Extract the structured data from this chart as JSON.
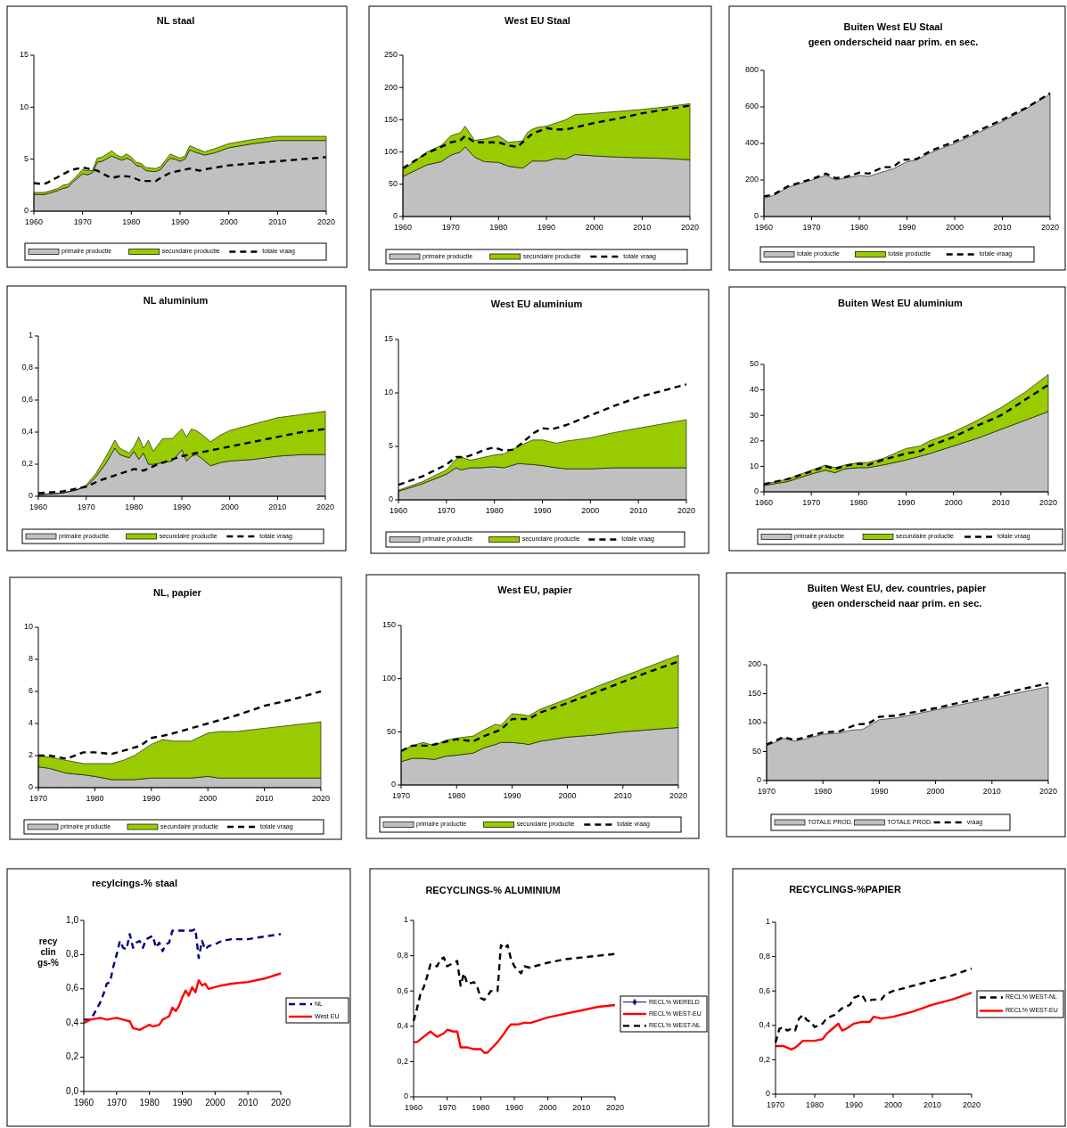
{
  "chart_data": [
    {
      "type": "area",
      "stacked": true,
      "title": "NL staal",
      "x": [
        1960,
        1962,
        1963,
        1965,
        1966,
        1967,
        1968,
        1970,
        1971,
        1972,
        1973,
        1974,
        1976,
        1977,
        1978,
        1979,
        1980,
        1981,
        1982,
        1983,
        1985,
        1986,
        1987,
        1988,
        1989,
        1990,
        1991,
        1992,
        1993,
        1995,
        1997,
        2000,
        2005,
        2010,
        2020
      ],
      "xlim": [
        1960,
        2020
      ],
      "xticks": [
        1960,
        1970,
        1980,
        1990,
        2000,
        2010,
        2020
      ],
      "ylim": [
        0,
        15
      ],
      "yticks": [
        0,
        5,
        10,
        15
      ],
      "legend": "bottom",
      "series": [
        {
          "name": "primaire productie",
          "color": "#c0c0c0",
          "values": [
            1.6,
            1.6,
            1.7,
            2.0,
            2.2,
            2.3,
            2.8,
            3.6,
            3.5,
            3.7,
            4.7,
            4.8,
            5.3,
            5.1,
            4.9,
            5.1,
            4.9,
            4.4,
            4.3,
            3.9,
            3.8,
            4.0,
            4.6,
            5.1,
            5.0,
            4.8,
            5.0,
            5.9,
            5.7,
            5.4,
            5.6,
            6.1,
            6.5,
            6.8,
            6.8
          ]
        },
        {
          "name": "secundaire productie",
          "color": "#99cc00",
          "values": [
            0.2,
            0.2,
            0.2,
            0.2,
            0.3,
            0.3,
            0.2,
            0.4,
            0.4,
            0.2,
            0.4,
            0.4,
            0.5,
            0.3,
            0.3,
            0.4,
            0.3,
            0.3,
            0.3,
            0.3,
            0.3,
            0.3,
            0.3,
            0.4,
            0.3,
            0.3,
            0.3,
            0.4,
            0.4,
            0.3,
            0.4,
            0.4,
            0.4,
            0.4,
            0.4
          ]
        },
        {
          "name": "totale vraag",
          "type": "line",
          "color": "#000000",
          "line_style": "dashed",
          "x": [
            1960,
            1962,
            1963,
            1965,
            1967,
            1968,
            1970,
            1972,
            1973,
            1975,
            1976,
            1978,
            1980,
            1982,
            1985,
            1986,
            1988,
            1990,
            1992,
            1994,
            1996,
            2000,
            2005,
            2010,
            2015,
            2020
          ],
          "values": [
            2.7,
            2.6,
            2.8,
            3.3,
            3.8,
            4.0,
            4.2,
            4.0,
            3.9,
            3.4,
            3.2,
            3.4,
            3.3,
            2.9,
            2.9,
            3.2,
            3.7,
            3.9,
            4.1,
            3.9,
            4.1,
            4.4,
            4.6,
            4.8,
            5.0,
            5.2
          ]
        }
      ]
    },
    {
      "type": "area",
      "stacked": true,
      "title": "West EU Staal",
      "x": [
        1960,
        1965,
        1968,
        1970,
        1972,
        1973,
        1975,
        1977,
        1980,
        1982,
        1985,
        1986,
        1987,
        1988,
        1990,
        1992,
        1994,
        1996,
        2000,
        2005,
        2010,
        2015,
        2020
      ],
      "xlim": [
        1960,
        2020
      ],
      "xticks": [
        1960,
        1970,
        1980,
        1990,
        2000,
        2010,
        2020
      ],
      "ylim": [
        0,
        250
      ],
      "yticks": [
        0,
        50,
        100,
        150,
        200,
        250
      ],
      "legend": "bottom",
      "series": [
        {
          "name": "primaire productie",
          "color": "#c0c0c0",
          "values": [
            62,
            80,
            85,
            95,
            100,
            108,
            92,
            85,
            84,
            78,
            75,
            80,
            86,
            86,
            86,
            90,
            89,
            96,
            94,
            92,
            91,
            90,
            88
          ]
        },
        {
          "name": "secundaire productie",
          "color": "#99cc00",
          "values": [
            10,
            20,
            25,
            30,
            30,
            32,
            26,
            35,
            41,
            37,
            42,
            50,
            49,
            52,
            54,
            55,
            61,
            62,
            66,
            71,
            75,
            80,
            87
          ]
        },
        {
          "name": "totale vraag",
          "type": "line",
          "color": "#000000",
          "line_style": "dashed",
          "x": [
            1960,
            1965,
            1968,
            1970,
            1972,
            1973,
            1975,
            1980,
            1982,
            1984,
            1985,
            1987,
            1990,
            1992,
            1994,
            1996,
            2000,
            2005,
            2010,
            2015,
            2020
          ],
          "values": [
            75,
            98,
            108,
            115,
            118,
            125,
            115,
            115,
            110,
            108,
            115,
            128,
            137,
            135,
            135,
            138,
            145,
            152,
            160,
            166,
            172
          ]
        }
      ]
    },
    {
      "type": "area",
      "stacked": true,
      "title": "Buiten West EU Staal",
      "subtitle": "geen onderscheid naar prim. en sec.",
      "x": [
        1960,
        1962,
        1965,
        1970,
        1973,
        1975,
        1977,
        1980,
        1982,
        1985,
        1987,
        1990,
        1992,
        1995,
        2000,
        2005,
        2010,
        2015,
        2020
      ],
      "xlim": [
        1960,
        2020
      ],
      "xticks": [
        1960,
        1970,
        1980,
        1990,
        2000,
        2010,
        2020
      ],
      "ylim": [
        0,
        800
      ],
      "yticks": [
        0,
        200,
        400,
        600,
        800
      ],
      "legend": "bottom",
      "series": [
        {
          "name": "totale productie",
          "color": "#c0c0c0",
          "values": [
            100,
            115,
            160,
            200,
            225,
            200,
            210,
            225,
            220,
            245,
            260,
            300,
            310,
            350,
            400,
            460,
            520,
            590,
            670
          ]
        },
        {
          "name": "totale productie",
          "color": "#99cc00",
          "values": [
            null,
            null,
            null,
            null,
            null,
            null,
            null,
            null,
            null,
            null,
            null,
            null,
            null,
            null,
            null,
            null,
            null,
            null,
            null
          ]
        },
        {
          "name": "totale vraag",
          "type": "line",
          "color": "#000000",
          "line_style": "dashed",
          "x": [
            1960,
            1962,
            1965,
            1970,
            1973,
            1975,
            1977,
            1980,
            1982,
            1985,
            1987,
            1989,
            1992,
            1995,
            2000,
            2005,
            2010,
            2015,
            2020
          ],
          "values": [
            110,
            120,
            165,
            205,
            235,
            210,
            215,
            240,
            235,
            270,
            270,
            310,
            315,
            360,
            410,
            470,
            530,
            595,
            675
          ]
        }
      ]
    },
    {
      "type": "area",
      "stacked": true,
      "title": "NL aluminium",
      "x": [
        1960,
        1965,
        1968,
        1970,
        1972,
        1974,
        1976,
        1977,
        1979,
        1980,
        1981,
        1982,
        1983,
        1984,
        1986,
        1988,
        1990,
        1991,
        1992,
        1993,
        1994,
        1996,
        1998,
        2000,
        2005,
        2010,
        2015,
        2020
      ],
      "xlim": [
        1960,
        2020
      ],
      "xticks": [
        1960,
        1970,
        1980,
        1990,
        2000,
        2010,
        2020
      ],
      "ylim": [
        0,
        1
      ],
      "yticks": [
        0,
        {
          "value": 0.2,
          "label": "0,2"
        },
        {
          "value": 0.4,
          "label": "0,4"
        },
        {
          "value": 0.6,
          "label": "0,6"
        },
        {
          "value": 0.8,
          "label": "0,8"
        },
        1
      ],
      "legend": "bottom",
      "series": [
        {
          "name": "primaire productie",
          "color": "#c0c0c0",
          "values": [
            0.01,
            0.02,
            0.04,
            0.06,
            0.12,
            0.2,
            0.3,
            0.26,
            0.24,
            0.28,
            0.23,
            0.27,
            0.2,
            0.2,
            0.21,
            0.22,
            0.29,
            0.22,
            0.25,
            0.26,
            0.24,
            0.19,
            0.21,
            0.22,
            0.23,
            0.25,
            0.26,
            0.26
          ]
        },
        {
          "name": "secundaire productie",
          "color": "#99cc00",
          "values": [
            0,
            0,
            0,
            0.01,
            0.02,
            0.04,
            0.05,
            0.04,
            0.03,
            0.03,
            0.14,
            0.03,
            0.15,
            0.08,
            0.15,
            0.14,
            0.13,
            0.15,
            0.17,
            0.15,
            0.15,
            0.15,
            0.17,
            0.19,
            0.22,
            0.24,
            0.25,
            0.27
          ]
        },
        {
          "name": "totale vraag",
          "type": "line",
          "color": "#000000",
          "line_style": "dashed",
          "x": [
            1960,
            1965,
            1970,
            1973,
            1976,
            1980,
            1982,
            1985,
            1987,
            1990,
            1993,
            1995,
            2000,
            2005,
            2010,
            2015,
            2020
          ],
          "values": [
            0.02,
            0.03,
            0.06,
            0.1,
            0.13,
            0.17,
            0.16,
            0.2,
            0.22,
            0.25,
            0.27,
            0.28,
            0.31,
            0.34,
            0.37,
            0.4,
            0.42
          ]
        }
      ]
    },
    {
      "type": "area",
      "stacked": true,
      "title": "West EU aluminium",
      "x": [
        1960,
        1965,
        1970,
        1972,
        1973,
        1975,
        1977,
        1980,
        1982,
        1985,
        1988,
        1990,
        1993,
        1995,
        2000,
        2005,
        2010,
        2015,
        2020
      ],
      "xlim": [
        1960,
        2020
      ],
      "xticks": [
        1960,
        1970,
        1980,
        1990,
        2000,
        2010,
        2020
      ],
      "ylim": [
        0,
        15
      ],
      "yticks": [
        0,
        5,
        10,
        15
      ],
      "legend": "bottom",
      "series": [
        {
          "name": "primaire productie",
          "color": "#c0c0c0",
          "values": [
            0.8,
            1.5,
            2.4,
            3.0,
            2.8,
            3.0,
            3.0,
            3.1,
            3.0,
            3.4,
            3.3,
            3.2,
            3.0,
            2.9,
            2.9,
            3.0,
            3.0,
            3.0,
            3.0
          ]
        },
        {
          "name": "secundaire productie",
          "color": "#99cc00",
          "values": [
            0.1,
            0.2,
            0.4,
            0.8,
            1.2,
            0.7,
            0.9,
            1.1,
            1.3,
            1.6,
            2.3,
            2.4,
            2.3,
            2.6,
            2.9,
            3.3,
            3.7,
            4.1,
            4.5
          ]
        },
        {
          "name": "totale vraag",
          "type": "line",
          "color": "#000000",
          "line_style": "dashed",
          "x": [
            1960,
            1965,
            1970,
            1972,
            1974,
            1976,
            1978,
            1980,
            1982,
            1984,
            1986,
            1988,
            1990,
            1992,
            1995,
            2000,
            2005,
            2010,
            2015,
            2020
          ],
          "values": [
            1.4,
            2.2,
            3.3,
            4.0,
            4.0,
            4.3,
            4.7,
            4.9,
            4.6,
            4.7,
            5.4,
            6.2,
            6.7,
            6.6,
            7.0,
            7.9,
            8.8,
            9.6,
            10.2,
            10.8
          ]
        }
      ]
    },
    {
      "type": "area",
      "stacked": true,
      "title": "Buiten West EU aluminium",
      "x": [
        1960,
        1965,
        1970,
        1973,
        1975,
        1977,
        1980,
        1982,
        1985,
        1990,
        1993,
        1995,
        2000,
        2005,
        2010,
        2015,
        2020
      ],
      "xlim": [
        1960,
        2020
      ],
      "xticks": [
        1960,
        1970,
        1980,
        1990,
        2000,
        2010,
        2020
      ],
      "ylim": [
        0,
        50
      ],
      "yticks": [
        0,
        10,
        20,
        30,
        40,
        50
      ],
      "legend": "bottom",
      "series": [
        {
          "name": "primaire productie",
          "color": "#c0c0c0",
          "values": [
            2.5,
            4,
            7,
            8.5,
            7.5,
            9,
            9.5,
            9.5,
            10.5,
            12.5,
            14,
            15,
            18,
            21,
            24.5,
            28,
            31.5
          ]
        },
        {
          "name": "secundaire productie",
          "color": "#99cc00",
          "values": [
            0.5,
            1,
            1.5,
            2,
            2,
            1.5,
            2,
            2,
            2.5,
            4.5,
            4,
            5,
            5.5,
            7,
            8.5,
            11,
            14.5
          ]
        },
        {
          "name": "totale vraag",
          "type": "line",
          "color": "#000000",
          "line_style": "dashed",
          "x": [
            1960,
            1965,
            1970,
            1973,
            1975,
            1978,
            1980,
            1982,
            1985,
            1988,
            1990,
            1993,
            1995,
            2000,
            2005,
            2010,
            2015,
            2020
          ],
          "values": [
            3,
            5,
            8,
            10,
            9,
            10.5,
            11,
            10.5,
            12.5,
            14,
            15,
            16,
            18,
            21.5,
            26,
            30,
            36,
            42
          ]
        }
      ]
    },
    {
      "type": "area",
      "stacked": true,
      "title": "NL, papier",
      "x": [
        1970,
        1972,
        1975,
        1978,
        1980,
        1983,
        1985,
        1987,
        1990,
        1992,
        1994,
        1997,
        2000,
        2002,
        2005,
        2010,
        2015,
        2020
      ],
      "xlim": [
        1970,
        2020
      ],
      "xticks": [
        1970,
        1980,
        1990,
        2000,
        2010,
        2020
      ],
      "ylim": [
        0,
        10
      ],
      "yticks": [
        0,
        2,
        4,
        6,
        8,
        10
      ],
      "legend": "bottom",
      "series": [
        {
          "name": "primaire productie",
          "color": "#c0c0c0",
          "values": [
            1.3,
            1.2,
            0.9,
            0.8,
            0.7,
            0.5,
            0.5,
            0.5,
            0.6,
            0.6,
            0.6,
            0.6,
            0.7,
            0.6,
            0.6,
            0.6,
            0.6,
            0.6
          ]
        },
        {
          "name": "secundaire productie",
          "color": "#99cc00",
          "values": [
            0.7,
            0.7,
            0.8,
            0.7,
            0.8,
            1.0,
            1.2,
            1.5,
            2.1,
            2.4,
            2.3,
            2.3,
            2.7,
            2.9,
            2.9,
            3.1,
            3.3,
            3.5
          ]
        },
        {
          "name": "totale vraag",
          "type": "line",
          "color": "#000000",
          "line_style": "dashed",
          "x": [
            1970,
            1972,
            1975,
            1978,
            1980,
            1983,
            1985,
            1988,
            1990,
            1993,
            1995,
            2000,
            2005,
            2010,
            2015,
            2020
          ],
          "values": [
            2.0,
            2.0,
            1.8,
            2.2,
            2.2,
            2.1,
            2.3,
            2.6,
            3.1,
            3.3,
            3.5,
            4.0,
            4.5,
            5.1,
            5.5,
            6.0
          ]
        }
      ]
    },
    {
      "type": "area",
      "stacked": true,
      "title": "West EU, papier",
      "x": [
        1970,
        1972,
        1974,
        1976,
        1978,
        1980,
        1983,
        1985,
        1987,
        1988,
        1990,
        1992,
        1993,
        1995,
        2000,
        2005,
        2010,
        2015,
        2020
      ],
      "xlim": [
        1970,
        2020
      ],
      "xticks": [
        1970,
        1980,
        1990,
        2000,
        2010,
        2020
      ],
      "ylim": [
        0,
        150
      ],
      "yticks": [
        0,
        50,
        100,
        150
      ],
      "legend": "bottom",
      "series": [
        {
          "name": "primaire productie",
          "color": "#c0c0c0",
          "values": [
            22,
            25,
            25,
            24,
            27,
            28,
            30,
            35,
            38,
            40,
            40,
            39,
            38,
            41,
            45,
            47,
            50,
            52,
            54
          ]
        },
        {
          "name": "secundaire productie",
          "color": "#99cc00",
          "values": [
            10,
            12,
            15,
            13,
            15,
            16,
            16,
            17,
            19,
            16,
            27,
            27,
            27,
            30,
            36,
            45,
            52,
            60,
            68
          ]
        },
        {
          "name": "totale vraag",
          "type": "line",
          "color": "#000000",
          "line_style": "dashed",
          "x": [
            1970,
            1972,
            1975,
            1980,
            1983,
            1985,
            1988,
            1990,
            1993,
            1995,
            2000,
            2005,
            2010,
            2015,
            2020
          ],
          "values": [
            32,
            37,
            37,
            43,
            41,
            46,
            52,
            62,
            62,
            68,
            77,
            87,
            97,
            107,
            116
          ]
        }
      ]
    },
    {
      "type": "area",
      "stacked": true,
      "title": "Buiten West EU, dev. countries, papier",
      "subtitle": "geen onderscheid naar prim. en sec.",
      "x": [
        1970,
        1972,
        1973,
        1975,
        1977,
        1980,
        1983,
        1985,
        1987,
        1990,
        1993,
        1995,
        2000,
        2005,
        2010,
        2015,
        2020
      ],
      "xlim": [
        1970,
        2020
      ],
      "xticks": [
        1970,
        1980,
        1990,
        2000,
        2010,
        2020
      ],
      "ylim": [
        0,
        200
      ],
      "yticks": [
        0,
        50,
        100,
        150,
        200
      ],
      "legend": "bottom",
      "series": [
        {
          "name": "TOTALE PROD.",
          "color": "#c0c0c0",
          "values": [
            60,
            68,
            73,
            68,
            72,
            80,
            82,
            87,
            88,
            105,
            108,
            112,
            122,
            132,
            142,
            152,
            162
          ]
        },
        {
          "name": "TOTALE PROD.",
          "color": "#c0c0c0",
          "values": [
            null,
            null,
            null,
            null,
            null,
            null,
            null,
            null,
            null,
            null,
            null,
            null,
            null,
            null,
            null,
            null,
            null
          ]
        },
        {
          "name": "vraag",
          "type": "line",
          "color": "#000000",
          "line_style": "dashed",
          "x": [
            1970,
            1973,
            1975,
            1980,
            1983,
            1986,
            1988,
            1990,
            1993,
            1995,
            2000,
            2005,
            2010,
            2015,
            2020
          ],
          "values": [
            62,
            75,
            70,
            83,
            85,
            97,
            98,
            110,
            112,
            116,
            125,
            136,
            146,
            157,
            168
          ]
        }
      ]
    },
    {
      "type": "line",
      "title": "recylcings-% staal",
      "ylabel": "recyclings-%",
      "xlim": [
        1960,
        2020
      ],
      "xticks": [
        1960,
        1970,
        1980,
        1990,
        2000,
        2010,
        2020
      ],
      "ylim": [
        0,
        1
      ],
      "yticks": [
        {
          "value": 0,
          "label": "0,0"
        },
        {
          "value": 0.2,
          "label": "0,2"
        },
        {
          "value": 0.4,
          "label": "0,4"
        },
        {
          "value": 0.6,
          "label": "0,6"
        },
        {
          "value": 0.8,
          "label": "0,8"
        },
        {
          "value": 1,
          "label": "1,0"
        }
      ],
      "legend": "right",
      "series": [
        {
          "name": "NL",
          "color": "#000080",
          "line_style": "dashed",
          "x": [
            1960,
            1962,
            1963,
            1965,
            1966,
            1967,
            1968,
            1969,
            1970,
            1971,
            1972,
            1973,
            1974,
            1975,
            1976,
            1977,
            1978,
            1979,
            1981,
            1982,
            1983,
            1984,
            1985,
            1986,
            1987,
            1993,
            1994,
            1995,
            1996,
            1997,
            1998,
            2000,
            2002,
            2005,
            2010,
            2013,
            2020
          ],
          "values": [
            0.42,
            0.42,
            0.45,
            0.52,
            0.57,
            0.63,
            0.64,
            0.73,
            0.8,
            0.88,
            0.84,
            0.83,
            0.92,
            0.84,
            0.87,
            0.88,
            0.84,
            0.89,
            0.91,
            0.84,
            0.87,
            0.82,
            0.86,
            0.87,
            0.94,
            0.94,
            0.95,
            0.78,
            0.88,
            0.83,
            0.85,
            0.86,
            0.88,
            0.89,
            0.89,
            0.9,
            0.92
          ]
        },
        {
          "name": "West EU",
          "color": "#ff0000",
          "line_style": "solid",
          "x": [
            1960,
            1962,
            1965,
            1967,
            1970,
            1972,
            1974,
            1975,
            1977,
            1978,
            1980,
            1981,
            1983,
            1984,
            1986,
            1987,
            1988,
            1989,
            1990,
            1991,
            1992,
            1993,
            1994,
            1995,
            1996,
            1997,
            1998,
            2000,
            2002,
            2005,
            2010,
            2015,
            2020
          ],
          "values": [
            0.4,
            0.42,
            0.43,
            0.42,
            0.43,
            0.42,
            0.41,
            0.37,
            0.36,
            0.37,
            0.39,
            0.38,
            0.39,
            0.42,
            0.44,
            0.49,
            0.47,
            0.5,
            0.55,
            0.59,
            0.56,
            0.61,
            0.58,
            0.65,
            0.62,
            0.63,
            0.6,
            0.61,
            0.62,
            0.63,
            0.64,
            0.66,
            0.69
          ]
        }
      ]
    },
    {
      "type": "line",
      "title": "RECYCLINGS-% ALUMINIUM",
      "xlim": [
        1960,
        2020
      ],
      "xticks": [
        1960,
        1970,
        1980,
        1990,
        2000,
        2010,
        2020
      ],
      "ylim": [
        0,
        1
      ],
      "yticks": [
        0,
        {
          "value": 0.2,
          "label": "0,2"
        },
        {
          "value": 0.4,
          "label": "0,4"
        },
        {
          "value": 0.6,
          "label": "0,6"
        },
        {
          "value": 0.8,
          "label": "0,8"
        },
        1
      ],
      "legend": "right",
      "series": [
        {
          "name": "RECL% WERELD",
          "color": "#000080",
          "line_style": "solid",
          "marker": "diamond"
        },
        {
          "name": "RECL% WEST-EU",
          "color": "#ff0000",
          "line_style": "solid",
          "x": [
            1960,
            1961,
            1963,
            1965,
            1967,
            1969,
            1970,
            1972,
            1973,
            1974,
            1976,
            1978,
            1980,
            1981,
            1982,
            1983,
            1985,
            1987,
            1988,
            1989,
            1991,
            1993,
            1995,
            2000,
            2005,
            2010,
            2015,
            2020
          ],
          "values": [
            0.31,
            0.31,
            0.34,
            0.37,
            0.34,
            0.36,
            0.38,
            0.37,
            0.37,
            0.28,
            0.28,
            0.27,
            0.27,
            0.25,
            0.25,
            0.27,
            0.31,
            0.36,
            0.39,
            0.41,
            0.41,
            0.42,
            0.42,
            0.45,
            0.47,
            0.49,
            0.51,
            0.52
          ]
        },
        {
          "name": "RECL% WEST-NL",
          "color": "#000000",
          "line_style": "dashed",
          "x": [
            1960,
            1961,
            1962,
            1963,
            1964,
            1965,
            1967,
            1968,
            1969,
            1970,
            1972,
            1973,
            1974,
            1975,
            1976,
            1978,
            1979,
            1980,
            1981,
            1982,
            1983,
            1985,
            1986,
            1987,
            1988,
            1989,
            1990,
            1992,
            1993,
            1995,
            1996,
            1998,
            2000,
            2005,
            2010,
            2015,
            2020
          ],
          "values": [
            0.43,
            0.5,
            0.58,
            0.62,
            0.68,
            0.75,
            0.74,
            0.78,
            0.79,
            0.74,
            0.76,
            0.77,
            0.63,
            0.7,
            0.64,
            0.65,
            0.62,
            0.56,
            0.55,
            0.57,
            0.6,
            0.6,
            0.86,
            0.84,
            0.86,
            0.78,
            0.74,
            0.7,
            0.74,
            0.73,
            0.74,
            0.75,
            0.76,
            0.78,
            0.79,
            0.8,
            0.81
          ]
        }
      ]
    },
    {
      "type": "line",
      "title": "RECYCLINGS-%PAPIER",
      "xlim": [
        1970,
        2020
      ],
      "xticks": [
        1970,
        1980,
        1990,
        2000,
        2010,
        2020
      ],
      "ylim": [
        0,
        1
      ],
      "yticks": [
        0,
        {
          "value": 0.2,
          "label": "0,2"
        },
        {
          "value": 0.4,
          "label": "0,4"
        },
        {
          "value": 0.6,
          "label": "0,6"
        },
        {
          "value": 0.8,
          "label": "0,8"
        },
        1
      ],
      "legend": "right",
      "series": [
        {
          "name": "RECL% WEST-NL",
          "color": "#000000",
          "line_style": "dashed",
          "x": [
            1970,
            1971,
            1972,
            1973,
            1974,
            1975,
            1976,
            1977,
            1978,
            1979,
            1980,
            1982,
            1983,
            1985,
            1987,
            1989,
            1990,
            1992,
            1993,
            1995,
            1997,
            1998,
            2000,
            2005,
            2010,
            2015,
            2020
          ],
          "values": [
            0.3,
            0.38,
            0.39,
            0.37,
            0.38,
            0.37,
            0.44,
            0.46,
            0.43,
            0.42,
            0.39,
            0.41,
            0.44,
            0.46,
            0.5,
            0.52,
            0.56,
            0.58,
            0.54,
            0.55,
            0.55,
            0.58,
            0.6,
            0.63,
            0.66,
            0.69,
            0.73
          ]
        },
        {
          "name": "RECL% WEST-EU",
          "color": "#ff0000",
          "line_style": "solid",
          "x": [
            1970,
            1972,
            1974,
            1975,
            1976,
            1977,
            1980,
            1982,
            1983,
            1985,
            1986,
            1987,
            1988,
            1990,
            1992,
            1994,
            1995,
            1997,
            2000,
            2005,
            2010,
            2015,
            2020
          ],
          "values": [
            0.28,
            0.28,
            0.26,
            0.27,
            0.29,
            0.31,
            0.31,
            0.32,
            0.35,
            0.39,
            0.41,
            0.37,
            0.38,
            0.41,
            0.42,
            0.42,
            0.45,
            0.44,
            0.45,
            0.48,
            0.52,
            0.55,
            0.59
          ]
        }
      ]
    }
  ]
}
